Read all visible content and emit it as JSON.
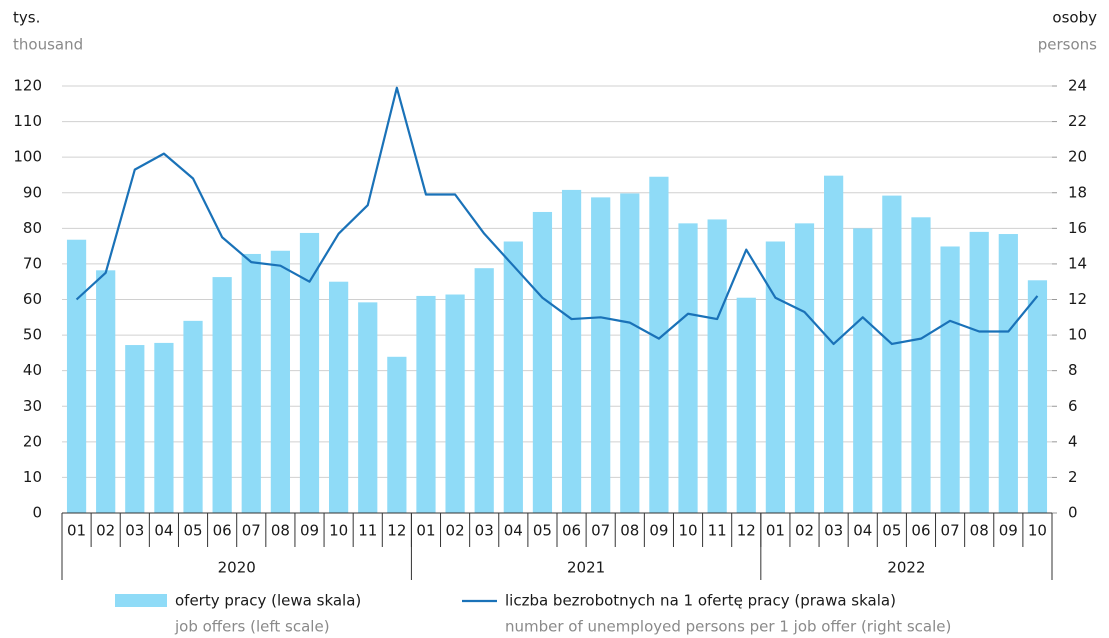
{
  "chart_data": {
    "type": "bar_line",
    "y_label": "tys.",
    "y_label_en": "thousand",
    "y2_label": "osoby",
    "y2_label_en": "persons",
    "categories": [
      "01",
      "02",
      "03",
      "04",
      "05",
      "06",
      "07",
      "08",
      "09",
      "10",
      "11",
      "12",
      "01",
      "02",
      "03",
      "04",
      "05",
      "06",
      "07",
      "08",
      "09",
      "10",
      "11",
      "12",
      "01",
      "02",
      "03",
      "04",
      "05",
      "06",
      "07",
      "08",
      "09",
      "10"
    ],
    "category_groups": [
      {
        "label": "2020",
        "count": 12
      },
      {
        "label": "2021",
        "count": 12
      },
      {
        "label": "2022",
        "count": 10
      }
    ],
    "series": [
      {
        "name": "oferty pracy (lewa skala)",
        "name_en": "job offers (left scale)",
        "type": "bar",
        "color": "#8fdbf7",
        "axis": "y",
        "values": [
          76.8,
          68.2,
          47.2,
          47.8,
          54.0,
          66.3,
          72.8,
          73.7,
          78.7,
          65.0,
          59.2,
          43.9,
          61.0,
          61.4,
          68.8,
          76.3,
          84.6,
          90.8,
          88.7,
          89.8,
          94.5,
          81.4,
          82.5,
          60.5,
          76.3,
          81.4,
          94.8,
          80.0,
          89.2,
          83.1,
          74.9,
          79.0,
          78.4,
          65.4
        ]
      },
      {
        "name": "liczba bezrobotnych na 1 ofertę pracy (prawa skala)",
        "name_en": "number of unemployed persons per 1 job offer (right scale)",
        "type": "line",
        "color": "#1a72b8",
        "axis": "y2",
        "values": [
          12.0,
          13.5,
          19.3,
          20.2,
          18.8,
          15.5,
          14.1,
          13.9,
          13.0,
          15.7,
          17.3,
          23.9,
          17.9,
          17.9,
          15.7,
          13.9,
          12.1,
          10.9,
          11.0,
          10.7,
          9.8,
          11.2,
          10.9,
          14.8,
          12.1,
          11.3,
          9.5,
          11.0,
          9.5,
          9.8,
          10.8,
          10.2,
          10.2,
          12.2
        ]
      }
    ],
    "ylim": [
      0,
      120
    ],
    "yticks": [
      0,
      10,
      20,
      30,
      40,
      50,
      60,
      70,
      80,
      90,
      100,
      110,
      120
    ],
    "y2lim": [
      0,
      24
    ],
    "y2ticks": [
      0,
      2,
      4,
      6,
      8,
      10,
      12,
      14,
      16,
      18,
      20,
      22,
      24
    ],
    "grid": true
  }
}
